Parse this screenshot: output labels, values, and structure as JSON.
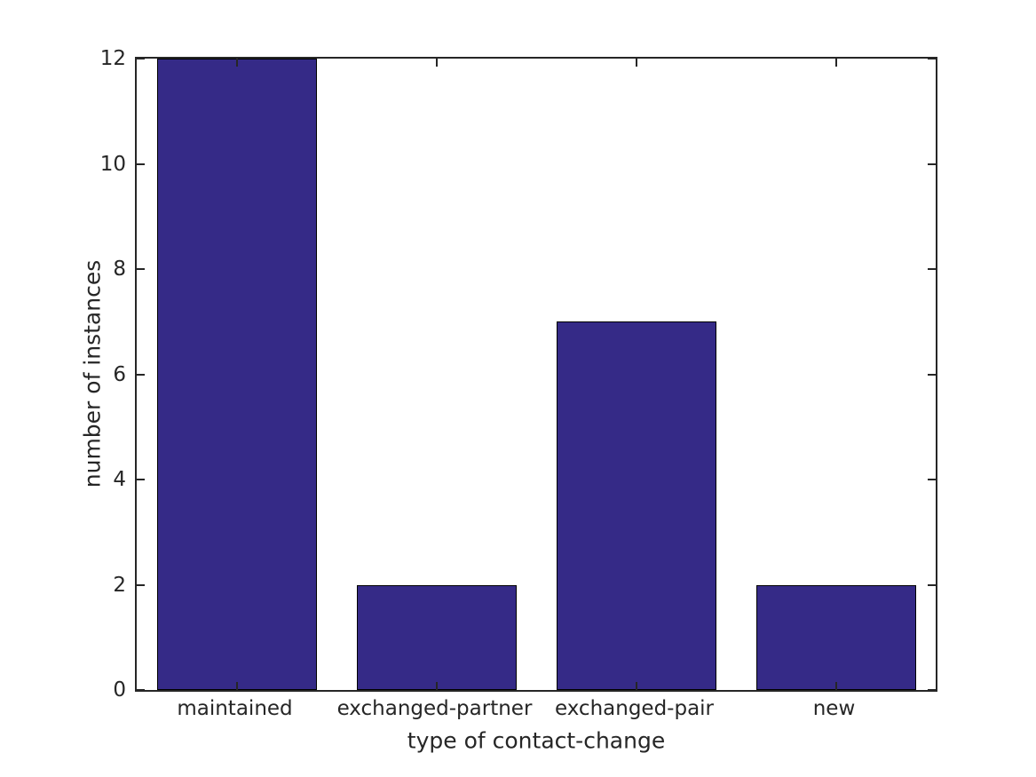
{
  "chart_data": {
    "type": "bar",
    "categories": [
      "maintained",
      "exchanged-partner",
      "exchanged-pair",
      "new"
    ],
    "values": [
      12,
      2,
      7,
      2
    ],
    "title": "",
    "xlabel": "type of contact-change",
    "ylabel": "number of instances",
    "ylim": [
      0,
      12
    ],
    "yticks": [
      0,
      2,
      4,
      6,
      8,
      10,
      12
    ],
    "bar_width_fraction": 0.8,
    "bar_color": "#352a87",
    "bar_edge_color": "#000000",
    "axis_color": "#262626",
    "background_color": "#ffffff",
    "grid": false,
    "legend_position": "none",
    "tick_style": "inward-mirrored"
  }
}
